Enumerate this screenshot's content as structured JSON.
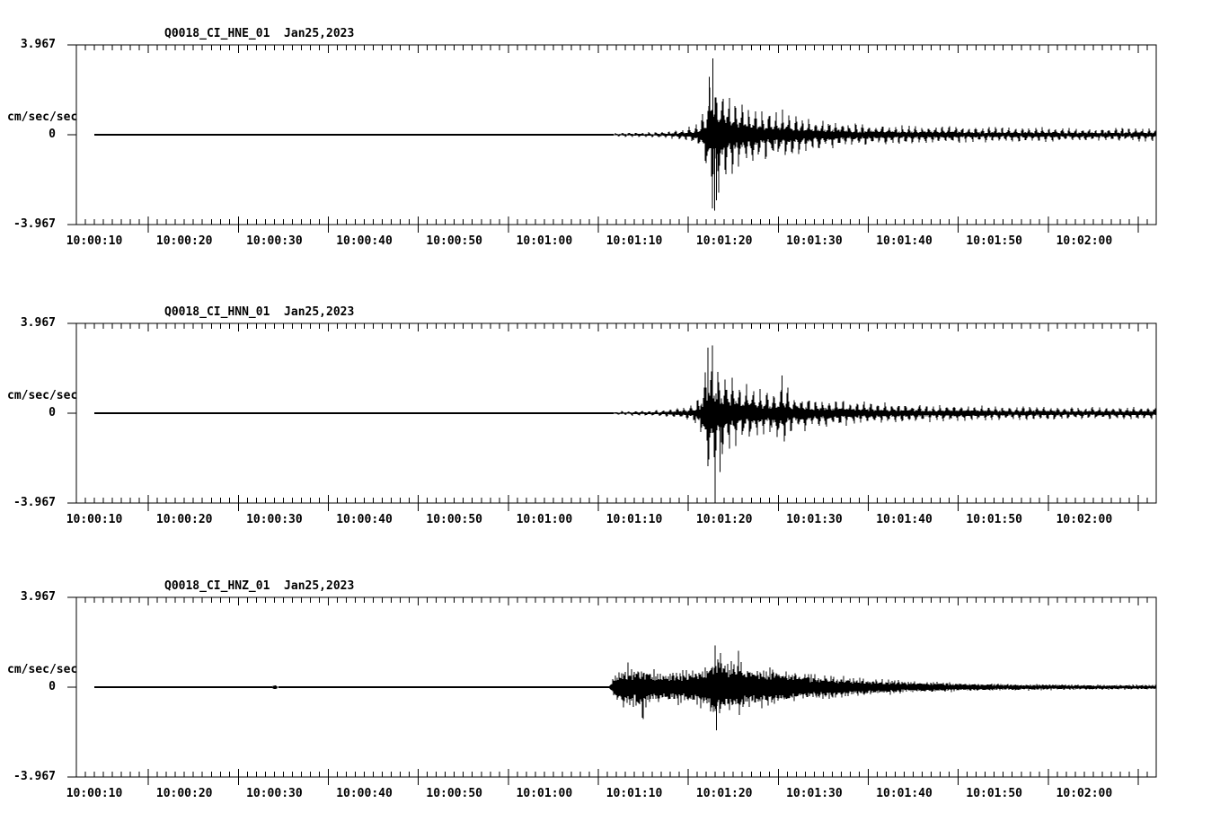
{
  "figure": {
    "background": "#ffffff",
    "trace_color": "#000000",
    "text_color": "#000000"
  },
  "chart_data": [
    {
      "type": "line",
      "kind": "seismogram",
      "title": "Q0018_CI_HNE_01  Jan25,2023",
      "station": "Q0018",
      "network": "CI",
      "channel": "HNE",
      "location": "01",
      "date": "Jan25,2023",
      "ylabel": "cm/sec/sec",
      "ylim": [
        -3.967,
        3.967
      ],
      "y_ticks": [
        "3.967",
        "0",
        "-3.967"
      ],
      "x_ticks": [
        "10:00:10",
        "10:00:20",
        "10:00:30",
        "10:00:40",
        "10:00:50",
        "10:01:00",
        "10:01:10",
        "10:01:20",
        "10:01:30",
        "10:01:40",
        "10:01:50",
        "10:02:00"
      ],
      "x_axis_start": "10:00:08",
      "x_axis_span_seconds": 120,
      "x_major_tick_seconds": 10,
      "x_minor_tick_seconds": 1,
      "grid": false,
      "series": {
        "name": "HNE",
        "seed": 11,
        "freq_hz": 1.35,
        "base": 0.28,
        "side_min": 0.1,
        "envelope_t_amp": [
          [
            0,
            0.015
          ],
          [
            57.6,
            0.015
          ],
          [
            58,
            0.1
          ],
          [
            60,
            0.12
          ],
          [
            62.5,
            0.13
          ],
          [
            64,
            0.17
          ],
          [
            65.5,
            0.28
          ],
          [
            66.6,
            0.42
          ],
          [
            67.4,
            0.75
          ],
          [
            68,
            1.7
          ],
          [
            68.6,
            3.3
          ],
          [
            69.2,
            3.05
          ],
          [
            69.9,
            2.5
          ],
          [
            70.8,
            2.0
          ],
          [
            71.8,
            1.55
          ],
          [
            73,
            1.45
          ],
          [
            74.5,
            1.15
          ],
          [
            76,
            1.25
          ],
          [
            77.5,
            1.0
          ],
          [
            79,
            0.9
          ],
          [
            81,
            0.7
          ],
          [
            83,
            0.62
          ],
          [
            85,
            0.55
          ],
          [
            87,
            0.5
          ],
          [
            89,
            0.45
          ],
          [
            92,
            0.4
          ],
          [
            95,
            0.42
          ],
          [
            98,
            0.36
          ],
          [
            102,
            0.32
          ],
          [
            106,
            0.34
          ],
          [
            110,
            0.3
          ],
          [
            114,
            0.31
          ],
          [
            117.9,
            0.3
          ]
        ],
        "spikes_t_amp": [
          [
            68.35,
            2.55
          ],
          [
            68.75,
            3.37
          ],
          [
            68.95,
            -3.35
          ],
          [
            69.15,
            -2.9
          ]
        ]
      }
    },
    {
      "type": "line",
      "kind": "seismogram",
      "title": "Q0018_CI_HNN_01  Jan25,2023",
      "station": "Q0018",
      "network": "CI",
      "channel": "HNN",
      "location": "01",
      "date": "Jan25,2023",
      "ylabel": "cm/sec/sec",
      "ylim": [
        -3.967,
        3.967
      ],
      "y_ticks": [
        "3.967",
        "0",
        "-3.967"
      ],
      "x_ticks": [
        "10:00:10",
        "10:00:20",
        "10:00:30",
        "10:00:40",
        "10:00:50",
        "10:01:00",
        "10:01:10",
        "10:01:20",
        "10:01:30",
        "10:01:40",
        "10:01:50",
        "10:02:00"
      ],
      "x_axis_start": "10:00:08",
      "x_axis_span_seconds": 120,
      "x_major_tick_seconds": 10,
      "x_minor_tick_seconds": 1,
      "grid": false,
      "series": {
        "name": "HNN",
        "seed": 22,
        "freq_hz": 1.3,
        "base": 0.28,
        "side_min": 0.1,
        "envelope_t_amp": [
          [
            0,
            0.015
          ],
          [
            57.6,
            0.015
          ],
          [
            58,
            0.1
          ],
          [
            60,
            0.13
          ],
          [
            62.5,
            0.14
          ],
          [
            64,
            0.2
          ],
          [
            65.5,
            0.3
          ],
          [
            66.6,
            0.5
          ],
          [
            67.4,
            1.0
          ],
          [
            68,
            2.4
          ],
          [
            68.7,
            2.9
          ],
          [
            69.3,
            2.55
          ],
          [
            70,
            2.1
          ],
          [
            71,
            1.7
          ],
          [
            72,
            1.4
          ],
          [
            73.5,
            1.2
          ],
          [
            75,
            1.0
          ],
          [
            76.3,
            1.45
          ],
          [
            77.3,
            1.05
          ],
          [
            78.5,
            0.85
          ],
          [
            80,
            0.75
          ],
          [
            82,
            0.65
          ],
          [
            84,
            0.58
          ],
          [
            86,
            0.52
          ],
          [
            88,
            0.48
          ],
          [
            90,
            0.44
          ],
          [
            93,
            0.4
          ],
          [
            96,
            0.38
          ],
          [
            100,
            0.34
          ],
          [
            105,
            0.31
          ],
          [
            110,
            0.3
          ],
          [
            117.9,
            0.28
          ]
        ],
        "spikes_t_amp": [
          [
            68.2,
            2.9
          ],
          [
            68.7,
            3.0
          ],
          [
            69.0,
            -3.9
          ],
          [
            69.55,
            -2.6
          ],
          [
            76.4,
            1.67
          ]
        ]
      }
    },
    {
      "type": "line",
      "kind": "seismogram",
      "title": "Q0018_CI_HNZ_01  Jan25,2023",
      "station": "Q0018",
      "network": "CI",
      "channel": "HNZ",
      "location": "01",
      "date": "Jan25,2023",
      "ylabel": "cm/sec/sec",
      "ylim": [
        -3.967,
        3.967
      ],
      "y_ticks": [
        "3.967",
        "0",
        "-3.967"
      ],
      "x_ticks": [
        "10:00:10",
        "10:00:20",
        "10:00:30",
        "10:00:40",
        "10:00:50",
        "10:01:00",
        "10:01:10",
        "10:01:20",
        "10:01:30",
        "10:01:40",
        "10:01:50",
        "10:02:00"
      ],
      "x_axis_start": "10:00:08",
      "x_axis_span_seconds": 120,
      "x_major_tick_seconds": 10,
      "x_minor_tick_seconds": 1,
      "grid": false,
      "series": {
        "name": "HNZ",
        "seed": 33,
        "freq_hz": 2.8,
        "base": 0.5,
        "side_min": 0.35,
        "envelope_t_amp": [
          [
            0,
            0.013
          ],
          [
            19.7,
            0.013
          ],
          [
            19.9,
            0.13
          ],
          [
            20.15,
            0.13
          ],
          [
            20.4,
            0.013
          ],
          [
            57.2,
            0.013
          ],
          [
            57.6,
            0.45
          ],
          [
            58.3,
            0.75
          ],
          [
            59,
            1.0
          ],
          [
            59.6,
            0.85
          ],
          [
            60.5,
            1.05
          ],
          [
            61.2,
            0.95
          ],
          [
            62,
            0.8
          ],
          [
            63,
            0.75
          ],
          [
            64.5,
            0.8
          ],
          [
            66,
            0.85
          ],
          [
            67,
            0.9
          ],
          [
            68,
            1.1
          ],
          [
            68.8,
            1.5
          ],
          [
            69.3,
            1.7
          ],
          [
            69.8,
            1.3
          ],
          [
            70.6,
            1.15
          ],
          [
            71.5,
            1.35
          ],
          [
            72.3,
            1.1
          ],
          [
            73.5,
            1.0
          ],
          [
            75,
            0.9
          ],
          [
            76.5,
            0.8
          ],
          [
            78,
            0.72
          ],
          [
            80,
            0.62
          ],
          [
            82,
            0.55
          ],
          [
            84,
            0.48
          ],
          [
            86,
            0.42
          ],
          [
            88,
            0.36
          ],
          [
            90,
            0.3
          ],
          [
            93,
            0.26
          ],
          [
            96,
            0.22
          ],
          [
            100,
            0.18
          ],
          [
            105,
            0.15
          ],
          [
            110,
            0.13
          ],
          [
            117.9,
            0.12
          ]
        ],
        "spikes_t_amp": [
          [
            59.3,
            1.1
          ],
          [
            60.9,
            -1.35
          ],
          [
            61.0,
            -1.4
          ],
          [
            69.0,
            1.85
          ],
          [
            69.15,
            -1.9
          ],
          [
            69.6,
            1.5
          ],
          [
            71.6,
            1.6
          ]
        ]
      }
    }
  ]
}
